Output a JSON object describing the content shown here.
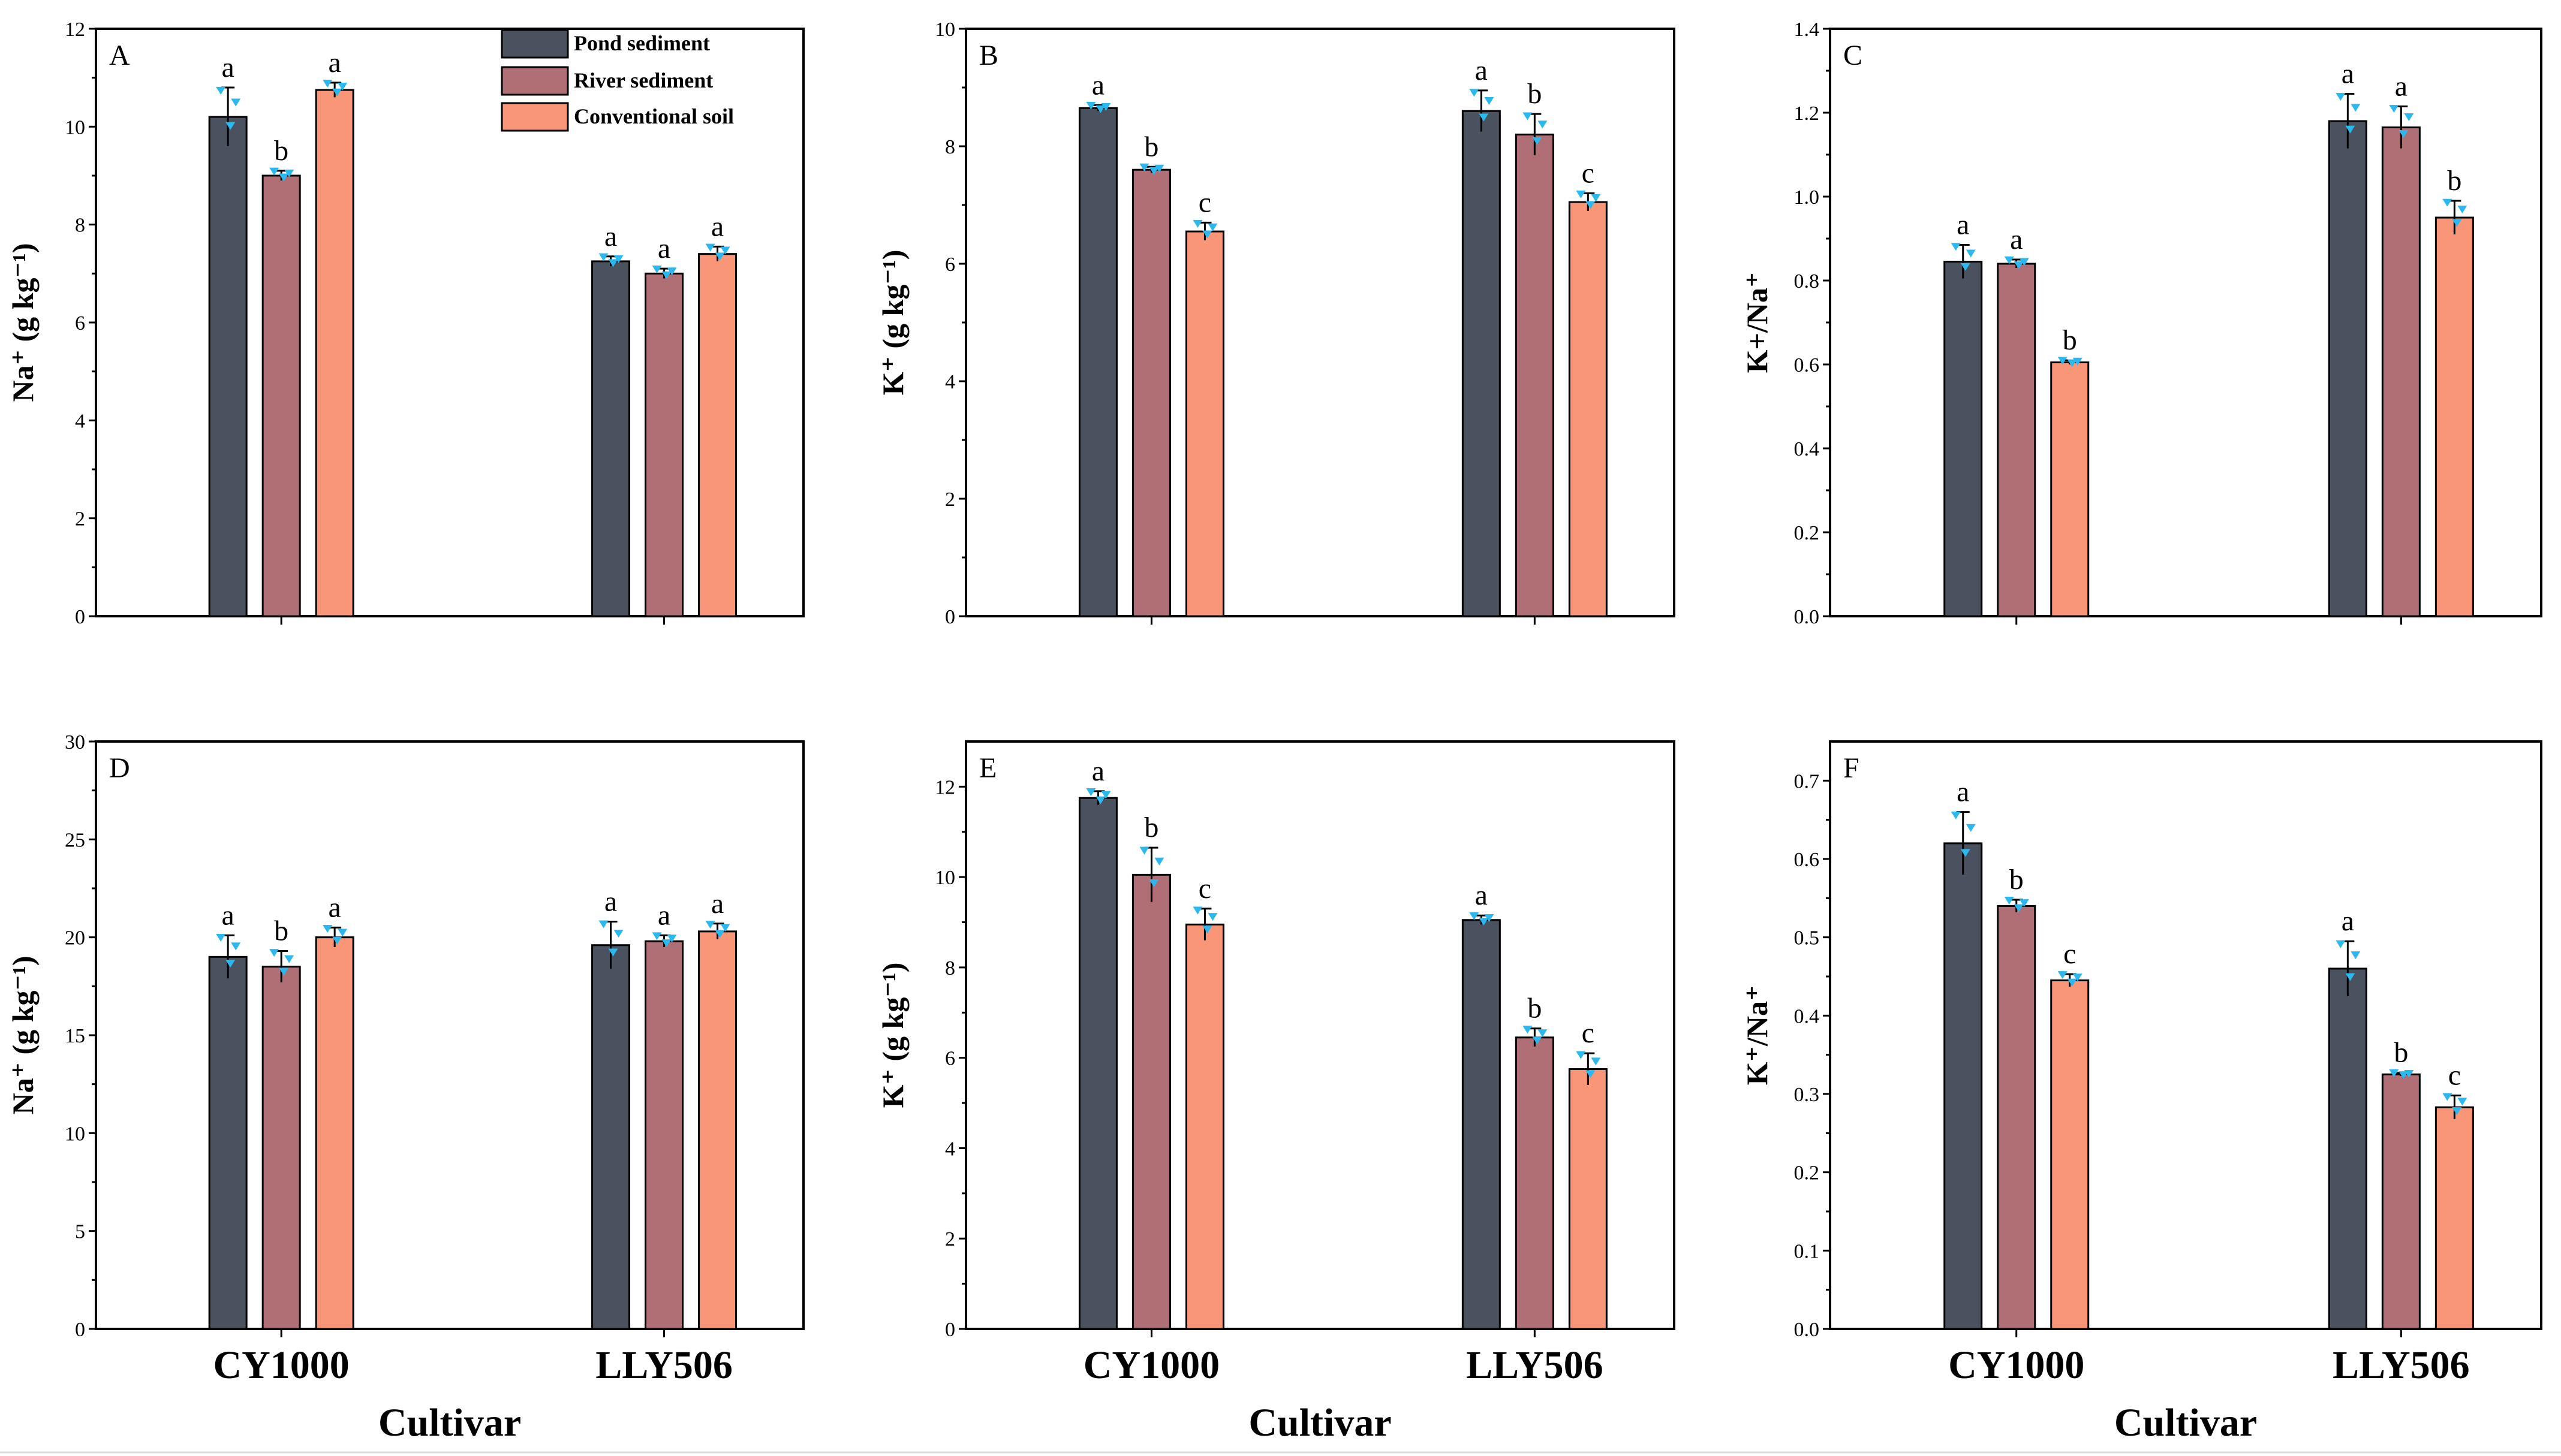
{
  "chart_data": {
    "type": "bar",
    "series_names": [
      "Pond sediment",
      "River sediment",
      "Conventional soil"
    ],
    "colors": [
      "#4a5260",
      "#b06f75",
      "#fa9678"
    ],
    "categories": [
      "CY1000",
      "LLY506"
    ],
    "xlabel": "Cultivar",
    "panels": [
      {
        "id": "A",
        "letter": "A",
        "ylabel": "Na⁺ (g kg⁻¹)",
        "ylim": [
          0,
          12
        ],
        "yticks": [
          "0",
          "2",
          "4",
          "6",
          "8",
          "10",
          "12"
        ],
        "values": [
          [
            10.2,
            9.0,
            10.75
          ],
          [
            7.25,
            7.0,
            7.4
          ]
        ],
        "errors": [
          [
            0.6,
            0.1,
            0.15
          ],
          [
            0.1,
            0.1,
            0.15
          ]
        ],
        "letters": [
          [
            "a",
            "b",
            "a"
          ],
          [
            "a",
            "a",
            "a"
          ]
        ]
      },
      {
        "id": "B",
        "letter": "B",
        "ylabel": "K⁺ (g kg⁻¹)",
        "ylim": [
          0,
          10
        ],
        "yticks": [
          "0",
          "2",
          "4",
          "6",
          "8",
          "10"
        ],
        "values": [
          [
            8.65,
            7.6,
            6.55
          ],
          [
            8.6,
            8.2,
            7.05
          ]
        ],
        "errors": [
          [
            0.05,
            0.05,
            0.15
          ],
          [
            0.35,
            0.35,
            0.15
          ]
        ],
        "letters": [
          [
            "a",
            "b",
            "c"
          ],
          [
            "a",
            "b",
            "c"
          ]
        ]
      },
      {
        "id": "C",
        "letter": "C",
        "ylabel": "K+/Na⁺",
        "ylim": [
          0,
          1.4
        ],
        "yticks": [
          "0.0",
          "0.2",
          "0.4",
          "0.6",
          "0.8",
          "1.0",
          "1.2",
          "1.4"
        ],
        "values": [
          [
            0.845,
            0.84,
            0.605
          ],
          [
            1.18,
            1.165,
            0.95
          ]
        ],
        "errors": [
          [
            0.04,
            0.01,
            0.005
          ],
          [
            0.065,
            0.05,
            0.04
          ]
        ],
        "letters": [
          [
            "a",
            "a",
            "b"
          ],
          [
            "a",
            "a",
            "b"
          ]
        ]
      },
      {
        "id": "D",
        "letter": "D",
        "ylabel": "Na⁺ (g kg⁻¹)",
        "ylim": [
          0,
          30
        ],
        "yticks": [
          "0",
          "5",
          "10",
          "15",
          "20",
          "25",
          "30"
        ],
        "values": [
          [
            19.0,
            18.5,
            20.0
          ],
          [
            19.6,
            19.8,
            20.3
          ]
        ],
        "errors": [
          [
            1.1,
            0.8,
            0.5
          ],
          [
            1.2,
            0.3,
            0.4
          ]
        ],
        "letters": [
          [
            "a",
            "b",
            "a"
          ],
          [
            "a",
            "a",
            "a"
          ]
        ]
      },
      {
        "id": "E",
        "letter": "E",
        "ylabel": "K⁺ (g kg⁻¹)",
        "ylim": [
          0,
          13
        ],
        "yticks": [
          "0",
          "2",
          "4",
          "6",
          "8",
          "10",
          "12"
        ],
        "values": [
          [
            11.75,
            10.05,
            8.95
          ],
          [
            9.05,
            6.45,
            5.75
          ]
        ],
        "errors": [
          [
            0.15,
            0.6,
            0.35
          ],
          [
            0.1,
            0.2,
            0.35
          ]
        ],
        "letters": [
          [
            "a",
            "b",
            "c"
          ],
          [
            "a",
            "b",
            "c"
          ]
        ]
      },
      {
        "id": "F",
        "letter": "F",
        "ylabel": "K⁺/Na⁺",
        "ylim": [
          0,
          0.75
        ],
        "yticks": [
          "0.0",
          "0.1",
          "0.2",
          "0.3",
          "0.4",
          "0.5",
          "0.6",
          "0.7"
        ],
        "values": [
          [
            0.62,
            0.54,
            0.445
          ],
          [
            0.46,
            0.325,
            0.283
          ]
        ],
        "errors": [
          [
            0.04,
            0.008,
            0.008
          ],
          [
            0.035,
            0.002,
            0.015
          ]
        ],
        "letters": [
          [
            "a",
            "b",
            "c"
          ],
          [
            "a",
            "b",
            "c"
          ]
        ]
      }
    ]
  }
}
